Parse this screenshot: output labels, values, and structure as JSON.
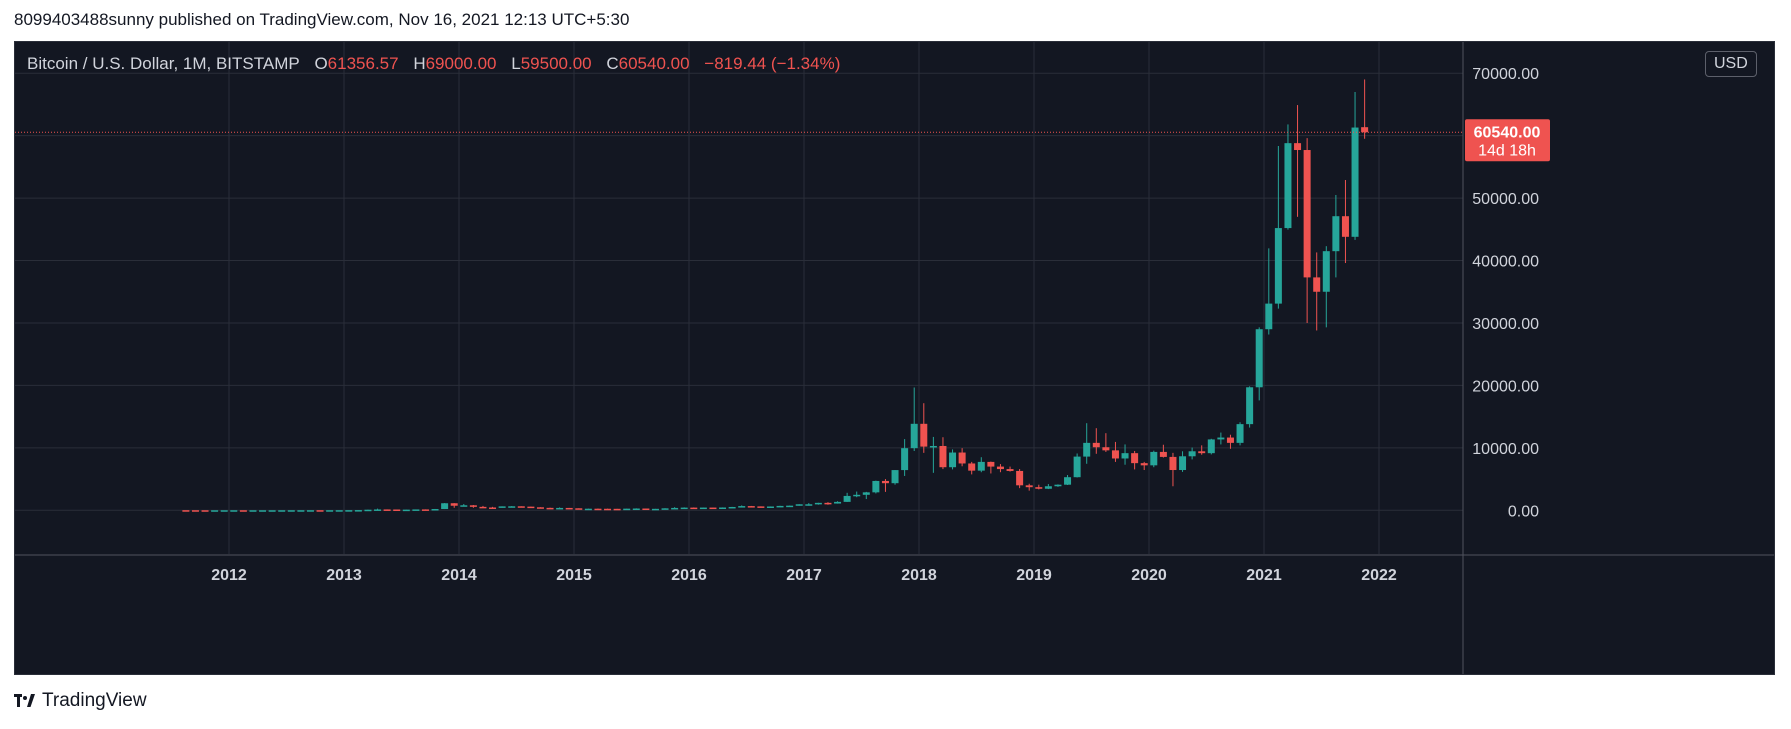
{
  "header": {
    "publish_text": "8099403488sunny published on TradingView.com, Nov 16, 2021 12:13 UTC+5:30"
  },
  "legend": {
    "symbol": "Bitcoin / U.S. Dollar, 1M, BITSTAMP",
    "open_key": "O",
    "open": "61356.57",
    "high_key": "H",
    "high": "69000.00",
    "low_key": "L",
    "low": "59500.00",
    "close_key": "C",
    "close": "60540.00",
    "change": "−819.44 (−1.34%)"
  },
  "currency": "USD",
  "price_tag": {
    "price": "60540.00",
    "countdown": "14d 18h"
  },
  "footer": {
    "brand": "TradingView"
  },
  "colors": {
    "up": "#26a69a",
    "down": "#ef5350",
    "background": "#131722",
    "grid": "#2a2e39",
    "text": "#d1d4dc"
  },
  "chart_data": {
    "type": "candlestick",
    "interval": "1M",
    "x_ticks": [
      "2012",
      "2013",
      "2014",
      "2015",
      "2016",
      "2017",
      "2018",
      "2019",
      "2020",
      "2021",
      "2022"
    ],
    "y_ticks": [
      "0.00",
      "10000.00",
      "20000.00",
      "30000.00",
      "40000.00",
      "50000.00",
      "60000.00",
      "70000.00"
    ],
    "ylim": [
      -7000,
      75000
    ],
    "last_price": 60540,
    "candles": [
      {
        "t": "2011-08",
        "o": 13,
        "h": 15,
        "l": 7,
        "c": 8
      },
      {
        "t": "2011-09",
        "o": 8,
        "h": 9,
        "l": 4,
        "c": 5
      },
      {
        "t": "2011-10",
        "o": 5,
        "h": 5,
        "l": 2,
        "c": 3
      },
      {
        "t": "2011-11",
        "o": 3,
        "h": 4,
        "l": 2,
        "c": 3
      },
      {
        "t": "2011-12",
        "o": 3,
        "h": 5,
        "l": 3,
        "c": 5
      },
      {
        "t": "2012-01",
        "o": 5,
        "h": 7,
        "l": 5,
        "c": 6
      },
      {
        "t": "2012-02",
        "o": 6,
        "h": 6,
        "l": 4,
        "c": 5
      },
      {
        "t": "2012-03",
        "o": 5,
        "h": 6,
        "l": 4,
        "c": 5
      },
      {
        "t": "2012-04",
        "o": 5,
        "h": 5,
        "l": 4,
        "c": 5
      },
      {
        "t": "2012-05",
        "o": 5,
        "h": 5,
        "l": 5,
        "c": 5
      },
      {
        "t": "2012-06",
        "o": 5,
        "h": 7,
        "l": 5,
        "c": 7
      },
      {
        "t": "2012-07",
        "o": 7,
        "h": 9,
        "l": 7,
        "c": 9
      },
      {
        "t": "2012-08",
        "o": 9,
        "h": 15,
        "l": 7,
        "c": 10
      },
      {
        "t": "2012-09",
        "o": 10,
        "h": 13,
        "l": 10,
        "c": 12
      },
      {
        "t": "2012-10",
        "o": 12,
        "h": 13,
        "l": 10,
        "c": 11
      },
      {
        "t": "2012-11",
        "o": 11,
        "h": 13,
        "l": 10,
        "c": 12
      },
      {
        "t": "2012-12",
        "o": 12,
        "h": 14,
        "l": 12,
        "c": 13
      },
      {
        "t": "2013-01",
        "o": 13,
        "h": 21,
        "l": 13,
        "c": 20
      },
      {
        "t": "2013-02",
        "o": 20,
        "h": 33,
        "l": 20,
        "c": 33
      },
      {
        "t": "2013-03",
        "o": 33,
        "h": 95,
        "l": 33,
        "c": 93
      },
      {
        "t": "2013-04",
        "o": 93,
        "h": 266,
        "l": 50,
        "c": 139
      },
      {
        "t": "2013-05",
        "o": 139,
        "h": 140,
        "l": 80,
        "c": 129
      },
      {
        "t": "2013-06",
        "o": 129,
        "h": 129,
        "l": 90,
        "c": 97
      },
      {
        "t": "2013-07",
        "o": 97,
        "h": 110,
        "l": 65,
        "c": 106
      },
      {
        "t": "2013-08",
        "o": 106,
        "h": 130,
        "l": 100,
        "c": 141
      },
      {
        "t": "2013-09",
        "o": 141,
        "h": 145,
        "l": 110,
        "c": 133
      },
      {
        "t": "2013-10",
        "o": 133,
        "h": 215,
        "l": 120,
        "c": 204
      },
      {
        "t": "2013-11",
        "o": 204,
        "h": 1163,
        "l": 200,
        "c": 1130
      },
      {
        "t": "2013-12",
        "o": 1130,
        "h": 1150,
        "l": 400,
        "c": 731
      },
      {
        "t": "2014-01",
        "o": 731,
        "h": 1000,
        "l": 730,
        "c": 800
      },
      {
        "t": "2014-02",
        "o": 800,
        "h": 850,
        "l": 400,
        "c": 550
      },
      {
        "t": "2014-03",
        "o": 550,
        "h": 700,
        "l": 440,
        "c": 450
      },
      {
        "t": "2014-04",
        "o": 450,
        "h": 550,
        "l": 340,
        "c": 447
      },
      {
        "t": "2014-05",
        "o": 447,
        "h": 630,
        "l": 430,
        "c": 627
      },
      {
        "t": "2014-06",
        "o": 627,
        "h": 670,
        "l": 540,
        "c": 640
      },
      {
        "t": "2014-07",
        "o": 640,
        "h": 640,
        "l": 570,
        "c": 585
      },
      {
        "t": "2014-08",
        "o": 585,
        "h": 600,
        "l": 450,
        "c": 480
      },
      {
        "t": "2014-09",
        "o": 480,
        "h": 490,
        "l": 360,
        "c": 388
      },
      {
        "t": "2014-10",
        "o": 388,
        "h": 420,
        "l": 275,
        "c": 338
      },
      {
        "t": "2014-11",
        "o": 338,
        "h": 460,
        "l": 310,
        "c": 378
      },
      {
        "t": "2014-12",
        "o": 378,
        "h": 380,
        "l": 300,
        "c": 320
      },
      {
        "t": "2015-01",
        "o": 320,
        "h": 320,
        "l": 150,
        "c": 217
      },
      {
        "t": "2015-02",
        "o": 217,
        "h": 270,
        "l": 210,
        "c": 254
      },
      {
        "t": "2015-03",
        "o": 254,
        "h": 300,
        "l": 240,
        "c": 244
      },
      {
        "t": "2015-04",
        "o": 244,
        "h": 260,
        "l": 210,
        "c": 236
      },
      {
        "t": "2015-05",
        "o": 236,
        "h": 250,
        "l": 225,
        "c": 230
      },
      {
        "t": "2015-06",
        "o": 230,
        "h": 267,
        "l": 220,
        "c": 263
      },
      {
        "t": "2015-07",
        "o": 263,
        "h": 320,
        "l": 255,
        "c": 284
      },
      {
        "t": "2015-08",
        "o": 284,
        "h": 285,
        "l": 200,
        "c": 230
      },
      {
        "t": "2015-09",
        "o": 230,
        "h": 245,
        "l": 225,
        "c": 236
      },
      {
        "t": "2015-10",
        "o": 236,
        "h": 330,
        "l": 235,
        "c": 314
      },
      {
        "t": "2015-11",
        "o": 314,
        "h": 500,
        "l": 300,
        "c": 378
      },
      {
        "t": "2015-12",
        "o": 378,
        "h": 470,
        "l": 350,
        "c": 430
      },
      {
        "t": "2016-01",
        "o": 430,
        "h": 460,
        "l": 350,
        "c": 368
      },
      {
        "t": "2016-02",
        "o": 368,
        "h": 440,
        "l": 365,
        "c": 437
      },
      {
        "t": "2016-03",
        "o": 437,
        "h": 440,
        "l": 400,
        "c": 416
      },
      {
        "t": "2016-04",
        "o": 416,
        "h": 465,
        "l": 415,
        "c": 448
      },
      {
        "t": "2016-05",
        "o": 448,
        "h": 550,
        "l": 440,
        "c": 531
      },
      {
        "t": "2016-06",
        "o": 531,
        "h": 780,
        "l": 530,
        "c": 673
      },
      {
        "t": "2016-07",
        "o": 673,
        "h": 700,
        "l": 600,
        "c": 624
      },
      {
        "t": "2016-08",
        "o": 624,
        "h": 630,
        "l": 480,
        "c": 575
      },
      {
        "t": "2016-09",
        "o": 575,
        "h": 620,
        "l": 590,
        "c": 609
      },
      {
        "t": "2016-10",
        "o": 609,
        "h": 720,
        "l": 605,
        "c": 701
      },
      {
        "t": "2016-11",
        "o": 701,
        "h": 760,
        "l": 690,
        "c": 742
      },
      {
        "t": "2016-12",
        "o": 742,
        "h": 975,
        "l": 740,
        "c": 963
      },
      {
        "t": "2017-01",
        "o": 963,
        "h": 1150,
        "l": 750,
        "c": 965
      },
      {
        "t": "2017-02",
        "o": 965,
        "h": 1200,
        "l": 900,
        "c": 1190
      },
      {
        "t": "2017-03",
        "o": 1190,
        "h": 1300,
        "l": 890,
        "c": 1080
      },
      {
        "t": "2017-04",
        "o": 1080,
        "h": 1450,
        "l": 1070,
        "c": 1348
      },
      {
        "t": "2017-05",
        "o": 1348,
        "h": 2800,
        "l": 1340,
        "c": 2300
      },
      {
        "t": "2017-06",
        "o": 2300,
        "h": 3000,
        "l": 2100,
        "c": 2480
      },
      {
        "t": "2017-07",
        "o": 2480,
        "h": 2950,
        "l": 1800,
        "c": 2875
      },
      {
        "t": "2017-08",
        "o": 2875,
        "h": 4750,
        "l": 2700,
        "c": 4700
      },
      {
        "t": "2017-09",
        "o": 4700,
        "h": 5000,
        "l": 2950,
        "c": 4340
      },
      {
        "t": "2017-10",
        "o": 4340,
        "h": 6450,
        "l": 4100,
        "c": 6440
      },
      {
        "t": "2017-11",
        "o": 6440,
        "h": 11400,
        "l": 5500,
        "c": 9950
      },
      {
        "t": "2017-12",
        "o": 9950,
        "h": 19666,
        "l": 9500,
        "c": 13850
      },
      {
        "t": "2018-01",
        "o": 13850,
        "h": 17150,
        "l": 9200,
        "c": 10200
      },
      {
        "t": "2018-02",
        "o": 10200,
        "h": 11750,
        "l": 6000,
        "c": 10300
      },
      {
        "t": "2018-03",
        "o": 10300,
        "h": 11700,
        "l": 6600,
        "c": 6900
      },
      {
        "t": "2018-04",
        "o": 6900,
        "h": 9750,
        "l": 6550,
        "c": 9250
      },
      {
        "t": "2018-05",
        "o": 9250,
        "h": 9950,
        "l": 7050,
        "c": 7500
      },
      {
        "t": "2018-06",
        "o": 7500,
        "h": 7750,
        "l": 5750,
        "c": 6350
      },
      {
        "t": "2018-07",
        "o": 6350,
        "h": 8500,
        "l": 6100,
        "c": 7750
      },
      {
        "t": "2018-08",
        "o": 7750,
        "h": 7800,
        "l": 5900,
        "c": 7000
      },
      {
        "t": "2018-09",
        "o": 7000,
        "h": 7400,
        "l": 6100,
        "c": 6600
      },
      {
        "t": "2018-10",
        "o": 6600,
        "h": 7000,
        "l": 6200,
        "c": 6300
      },
      {
        "t": "2018-11",
        "o": 6300,
        "h": 6600,
        "l": 3550,
        "c": 4000
      },
      {
        "t": "2018-12",
        "o": 4000,
        "h": 4250,
        "l": 3150,
        "c": 3700
      },
      {
        "t": "2019-01",
        "o": 3700,
        "h": 4100,
        "l": 3350,
        "c": 3450
      },
      {
        "t": "2019-02",
        "o": 3450,
        "h": 4200,
        "l": 3400,
        "c": 3850
      },
      {
        "t": "2019-03",
        "o": 3850,
        "h": 4150,
        "l": 3750,
        "c": 4100
      },
      {
        "t": "2019-04",
        "o": 4100,
        "h": 5650,
        "l": 4050,
        "c": 5300
      },
      {
        "t": "2019-05",
        "o": 5300,
        "h": 9100,
        "l": 5250,
        "c": 8600
      },
      {
        "t": "2019-06",
        "o": 8600,
        "h": 13950,
        "l": 7450,
        "c": 10800
      },
      {
        "t": "2019-07",
        "o": 10800,
        "h": 13150,
        "l": 9050,
        "c": 10100
      },
      {
        "t": "2019-08",
        "o": 10100,
        "h": 12350,
        "l": 9350,
        "c": 9600
      },
      {
        "t": "2019-09",
        "o": 9600,
        "h": 10950,
        "l": 7750,
        "c": 8300
      },
      {
        "t": "2019-10",
        "o": 8300,
        "h": 10550,
        "l": 7300,
        "c": 9150
      },
      {
        "t": "2019-11",
        "o": 9150,
        "h": 9500,
        "l": 6550,
        "c": 7550
      },
      {
        "t": "2019-12",
        "o": 7550,
        "h": 7750,
        "l": 6450,
        "c": 7200
      },
      {
        "t": "2020-01",
        "o": 7200,
        "h": 9550,
        "l": 6900,
        "c": 9350
      },
      {
        "t": "2020-02",
        "o": 9350,
        "h": 10500,
        "l": 8450,
        "c": 8550
      },
      {
        "t": "2020-03",
        "o": 8550,
        "h": 9200,
        "l": 3850,
        "c": 6450
      },
      {
        "t": "2020-04",
        "o": 6450,
        "h": 9450,
        "l": 6150,
        "c": 8650
      },
      {
        "t": "2020-05",
        "o": 8650,
        "h": 10050,
        "l": 8150,
        "c": 9450
      },
      {
        "t": "2020-06",
        "o": 9450,
        "h": 10400,
        "l": 8900,
        "c": 9150
      },
      {
        "t": "2020-07",
        "o": 9150,
        "h": 11450,
        "l": 8950,
        "c": 11350
      },
      {
        "t": "2020-08",
        "o": 11350,
        "h": 12450,
        "l": 10550,
        "c": 11650
      },
      {
        "t": "2020-09",
        "o": 11650,
        "h": 12100,
        "l": 9850,
        "c": 10800
      },
      {
        "t": "2020-10",
        "o": 10800,
        "h": 14100,
        "l": 10400,
        "c": 13800
      },
      {
        "t": "2020-11",
        "o": 13800,
        "h": 19850,
        "l": 13250,
        "c": 19700
      },
      {
        "t": "2020-12",
        "o": 19700,
        "h": 29300,
        "l": 17600,
        "c": 29000
      },
      {
        "t": "2021-01",
        "o": 29000,
        "h": 41950,
        "l": 28150,
        "c": 33100
      },
      {
        "t": "2021-02",
        "o": 33100,
        "h": 58350,
        "l": 32300,
        "c": 45200
      },
      {
        "t": "2021-03",
        "o": 45200,
        "h": 61800,
        "l": 44950,
        "c": 58800
      },
      {
        "t": "2021-04",
        "o": 58800,
        "h": 64900,
        "l": 47000,
        "c": 57700
      },
      {
        "t": "2021-05",
        "o": 57700,
        "h": 59600,
        "l": 30000,
        "c": 37300
      },
      {
        "t": "2021-06",
        "o": 37300,
        "h": 41300,
        "l": 28800,
        "c": 35000
      },
      {
        "t": "2021-07",
        "o": 35000,
        "h": 42300,
        "l": 29300,
        "c": 41500
      },
      {
        "t": "2021-08",
        "o": 41500,
        "h": 50500,
        "l": 37300,
        "c": 47100
      },
      {
        "t": "2021-09",
        "o": 47100,
        "h": 52900,
        "l": 39600,
        "c": 43800
      },
      {
        "t": "2021-10",
        "o": 43800,
        "h": 67000,
        "l": 43300,
        "c": 61300
      },
      {
        "t": "2021-11",
        "o": 61356.57,
        "h": 69000,
        "l": 59500,
        "c": 60540
      }
    ]
  }
}
